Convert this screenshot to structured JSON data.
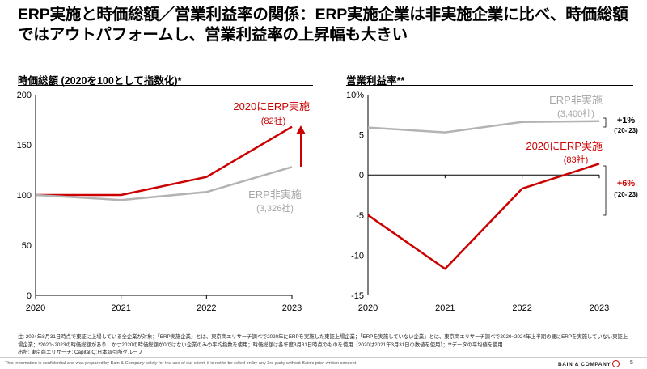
{
  "title": "ERP実施と時価総額／営業利益率の関係：ERP実施企業は非実施企業に比べ、時価総額ではアウトパフォームし、営業利益率の上昇幅も大きい",
  "colors": {
    "erp": "#cc0000",
    "non_erp": "#b3b3b3",
    "axis": "#000000"
  },
  "chart_data": [
    {
      "type": "line",
      "title": "時価総額 (2020を100として指数化)*",
      "x": [
        "2020",
        "2021",
        "2022",
        "2023"
      ],
      "ylim": [
        0,
        200
      ],
      "yticks": [
        "0",
        "50",
        "100",
        "150",
        "200"
      ],
      "series": [
        {
          "name": "2020にERP実施",
          "count": "(82社)",
          "values": [
            100,
            100,
            118,
            168
          ]
        },
        {
          "name": "ERP非実施",
          "count": "(3,326社)",
          "values": [
            100,
            95,
            103,
            128
          ]
        }
      ]
    },
    {
      "type": "line",
      "title": "営業利益率**",
      "x": [
        "2020",
        "2021",
        "2022",
        "2023"
      ],
      "ylim": [
        -15,
        10
      ],
      "yticks": [
        "-15",
        "-10",
        "-5",
        "0",
        "5",
        "10%"
      ],
      "series": [
        {
          "name": "2020にERP実施",
          "count": "(83社)",
          "values": [
            -5,
            -11.7,
            -1.7,
            1.4
          ],
          "change": "+6%",
          "change_period": "('20-'23)"
        },
        {
          "name": "ERP非実施",
          "count": "(3,400社)",
          "values": [
            5.9,
            5.3,
            6.6,
            6.7
          ],
          "change": "+1%",
          "change_period": "('20-'23)"
        }
      ]
    }
  ],
  "notes": [
    "注: 2024年8月31日時点で東証に上場している全企業が対象；「ERP実施企業」とは、東京商エリサーチ調べで2020年にERPを実施した東証上場企業；「ERPを実施していない企業」とは、東京商エリサーチ調べで2020~2024年上半期の間にERPを実施していない東証上",
    "場企業；*2020~2023の時価総額があり、かつ2020の時価総額が0ではない企業のみの平均指数を使用；時価総額は各年度3月31日時点のものを使用（2020は2021年3月31日の数値を使用）；**データの平均値を使用",
    "出所: 東京商エリサーチ; CapitalIQ;日本取引所グループ"
  ],
  "footer": {
    "confidential": "This information is confidential and was prepared by Bain & Company solely for the use of our client; it is not to be relied on by any 3rd party without Bain's prior written consent",
    "brand": "BAIN & COMPANY",
    "page": "5"
  }
}
